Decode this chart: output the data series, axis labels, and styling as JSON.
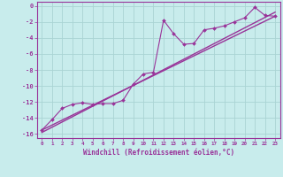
{
  "xlabel": "Windchill (Refroidissement éolien,°C)",
  "ylabel": "",
  "bg_color": "#c8ecec",
  "grid_color": "#aad4d4",
  "line_color": "#993399",
  "xlim": [
    -0.5,
    23.5
  ],
  "ylim": [
    -16.5,
    0.5
  ],
  "xtick_vals": [
    0,
    1,
    2,
    3,
    4,
    5,
    6,
    7,
    8,
    9,
    10,
    11,
    12,
    13,
    14,
    15,
    16,
    17,
    18,
    19,
    20,
    21,
    22,
    23
  ],
  "ytick_vals": [
    0,
    -2,
    -4,
    -6,
    -8,
    -10,
    -12,
    -14,
    -16
  ],
  "scatter_x": [
    0,
    1,
    2,
    3,
    4,
    5,
    6,
    7,
    8,
    9,
    10,
    11,
    12,
    13,
    14,
    15,
    16,
    17,
    18,
    19,
    20,
    21,
    22,
    23
  ],
  "scatter_y": [
    -15.5,
    -14.2,
    -12.8,
    -12.3,
    -12.1,
    -12.3,
    -12.2,
    -12.2,
    -11.8,
    -9.8,
    -8.5,
    -8.3,
    -1.8,
    -3.5,
    -4.8,
    -4.7,
    -3.0,
    -2.8,
    -2.5,
    -2.0,
    -1.5,
    -0.2,
    -1.2,
    -1.3
  ],
  "line1_x": [
    0,
    23
  ],
  "line1_y": [
    -15.5,
    -1.3
  ],
  "line2_x": [
    0,
    23
  ],
  "line2_y": [
    -15.8,
    -0.8
  ],
  "marker_size": 2.0,
  "line_width": 0.8
}
